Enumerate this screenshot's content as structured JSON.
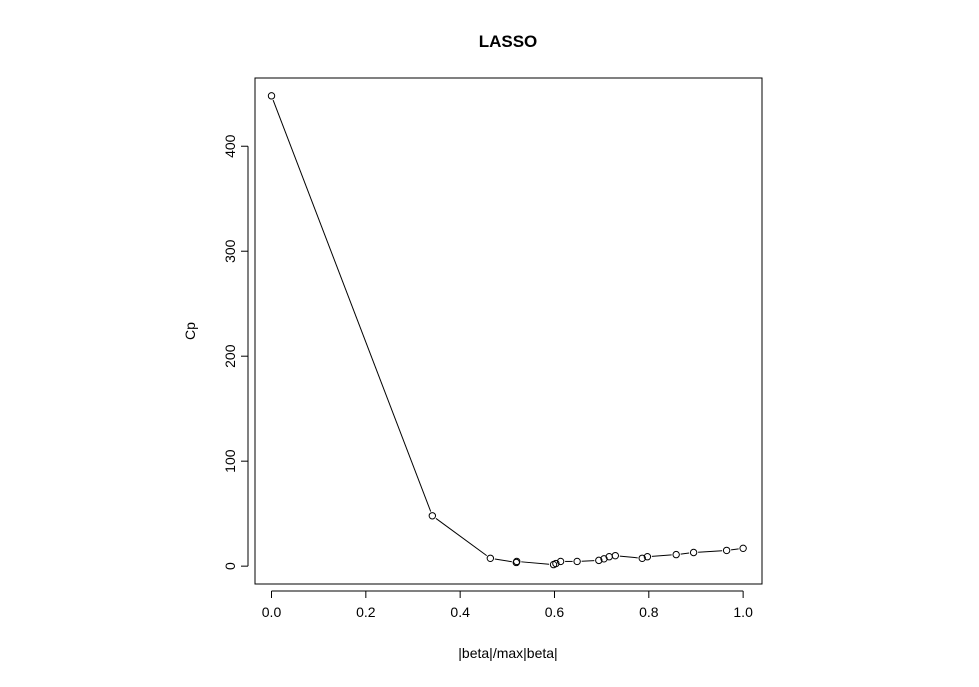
{
  "chart_data": {
    "type": "line",
    "title": "LASSO",
    "xlabel": "|beta|/max|beta|",
    "ylabel": "Cp",
    "xlim": [
      -0.035,
      1.04
    ],
    "ylim": [
      -17,
      465
    ],
    "xticks": [
      0.0,
      0.2,
      0.4,
      0.6,
      0.8,
      1.0
    ],
    "xtick_labels": [
      "0.0",
      "0.2",
      "0.4",
      "0.6",
      "0.8",
      "1.0"
    ],
    "yticks": [
      0,
      100,
      200,
      300,
      400
    ],
    "ytick_labels": [
      "0",
      "100",
      "200",
      "300",
      "400"
    ],
    "grid": false,
    "legend": "none",
    "marker": "open-circle",
    "line_style": "solid",
    "color": "#000000",
    "series": [
      {
        "x": [
          0.0,
          0.341,
          0.464,
          0.519,
          0.52,
          0.598,
          0.603,
          0.613,
          0.648,
          0.694,
          0.705,
          0.716,
          0.729,
          0.786,
          0.797,
          0.858,
          0.895,
          0.965,
          1.0
        ],
        "y": [
          448,
          48,
          7.5,
          3.5,
          4.5,
          1.5,
          2.5,
          4.5,
          4.5,
          5.5,
          7,
          9,
          10,
          7.5,
          9,
          11,
          13,
          15,
          17
        ]
      }
    ]
  }
}
